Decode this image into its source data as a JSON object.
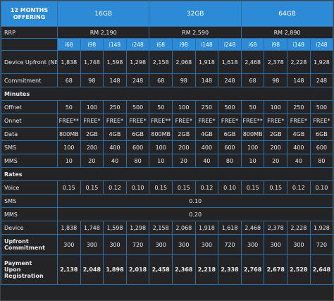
{
  "header": {
    "corner_line1": "12 MONTHS",
    "corner_line2": "OFFERING",
    "capacities": [
      "16GB",
      "32GB",
      "64GB"
    ]
  },
  "rrp": {
    "label": "RRP",
    "values": [
      "RM 2,190",
      "RM 2,590",
      "RM 2,890"
    ]
  },
  "plans": [
    "i68",
    "i98",
    "i148",
    "i248",
    "i68",
    "i98",
    "i148",
    "i248",
    "i68",
    "i98",
    "i148",
    "i248"
  ],
  "rows_top": [
    {
      "label": "Device Upfront (NEW)",
      "values": [
        "1,838",
        "1,748",
        "1,598",
        "1,298",
        "2,158",
        "2,068",
        "1,918",
        "1,618",
        "2,468",
        "2,378",
        "2,228",
        "1,928"
      ]
    },
    {
      "label": "Commitment",
      "values": [
        "68",
        "98",
        "148",
        "248",
        "68",
        "98",
        "148",
        "248",
        "68",
        "98",
        "148",
        "248"
      ]
    }
  ],
  "section_minutes": "Minutes",
  "rows_minutes": [
    {
      "label": "Offnet",
      "values": [
        "50",
        "100",
        "250",
        "500",
        "50",
        "100",
        "250",
        "500",
        "50",
        "100",
        "250",
        "500"
      ]
    },
    {
      "label": "Onnet",
      "values": [
        "FREE**",
        "FREE*",
        "FREE*",
        "FREE*",
        "FREE**",
        "FREE*",
        "FREE*",
        "FREE*",
        "FREE**",
        "FREE*",
        "FREE*",
        "FREE*"
      ]
    },
    {
      "label": "Data",
      "values": [
        "800MB",
        "2GB",
        "4GB",
        "6GB",
        "800MB",
        "2GB",
        "4GB",
        "6GB",
        "800MB",
        "2GB",
        "4GB",
        "6GB"
      ]
    },
    {
      "label": "SMS",
      "values": [
        "100",
        "200",
        "400",
        "600",
        "100",
        "200",
        "400",
        "600",
        "100",
        "200",
        "400",
        "600"
      ]
    },
    {
      "label": "MMS",
      "values": [
        "10",
        "20",
        "40",
        "80",
        "10",
        "20",
        "40",
        "80",
        "10",
        "20",
        "40",
        "80"
      ]
    }
  ],
  "section_rates": "Rates",
  "rate_voice": {
    "label": "Voice",
    "values": [
      "0.15",
      "0.15",
      "0.12",
      "0.10",
      "0.15",
      "0.15",
      "0.12",
      "0.10",
      "0.15",
      "0.15",
      "0.12",
      "0.10"
    ]
  },
  "rate_sms": {
    "label": "SMS",
    "value": "0.10"
  },
  "rate_mms": {
    "label": "MMS",
    "value": "0.20"
  },
  "rows_bottom": [
    {
      "label": "Device",
      "values": [
        "1,838",
        "1,748",
        "1,598",
        "1,298",
        "2,158",
        "2,068",
        "1,918",
        "1,618",
        "2,468",
        "2,378",
        "2,228",
        "1,928"
      ]
    }
  ],
  "upfront_commitment": {
    "label_line1": "Upfront",
    "label_line2": "Commitment",
    "values": [
      "300",
      "300",
      "300",
      "720",
      "300",
      "300",
      "300",
      "720",
      "300",
      "300",
      "300",
      "720"
    ]
  },
  "payment": {
    "label_line1": "Payment",
    "label_line2": "Upon",
    "label_line3": "Registration",
    "values": [
      "2,138",
      "2,048",
      "1,898",
      "2,018",
      "2,458",
      "2,368",
      "2,218",
      "2,338",
      "2,768",
      "2,678",
      "2,528",
      "2,648"
    ]
  }
}
